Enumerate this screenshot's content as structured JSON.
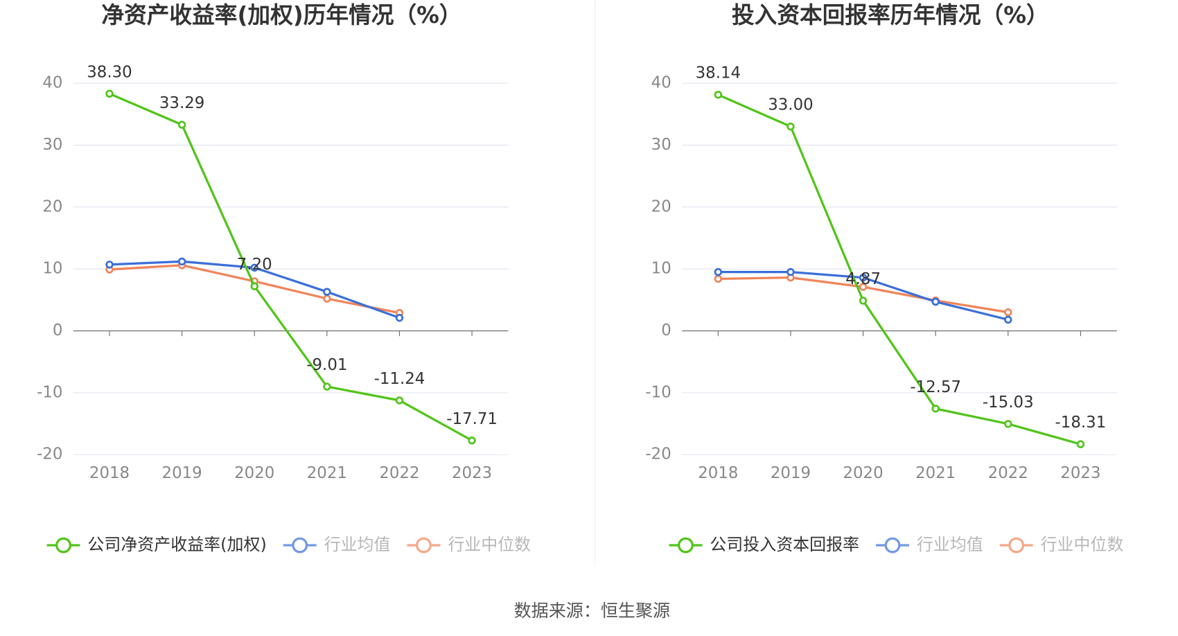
{
  "chart_data": [
    {
      "type": "line",
      "title": "净资产收益率(加权)历年情况（%）",
      "categories": [
        "2018",
        "2019",
        "2020",
        "2021",
        "2022",
        "2023"
      ],
      "series": [
        {
          "name": "公司净资产收益率(加权)",
          "color": "#52c41a",
          "values": [
            38.3,
            33.29,
            7.2,
            -9.01,
            -11.24,
            -17.71
          ],
          "value_labels": [
            "38.30",
            "33.29",
            "7.20",
            "-9.01",
            "-11.24",
            "-17.71"
          ]
        },
        {
          "name": "行业均值",
          "color": "#3a6fd8",
          "values": [
            10.7,
            11.2,
            10.2,
            6.3,
            2.1,
            null
          ]
        },
        {
          "name": "行业中位数",
          "color": "#f0845a",
          "values": [
            9.9,
            10.6,
            8.0,
            5.2,
            2.9,
            null
          ]
        }
      ],
      "ylim": [
        -20,
        40
      ],
      "yticks": [
        -20,
        -10,
        0,
        10,
        20,
        30,
        40
      ],
      "grid": true
    },
    {
      "type": "line",
      "title": "投入资本回报率历年情况（%）",
      "categories": [
        "2018",
        "2019",
        "2020",
        "2021",
        "2022",
        "2023"
      ],
      "series": [
        {
          "name": "公司投入资本回报率",
          "color": "#52c41a",
          "values": [
            38.14,
            33.0,
            4.87,
            -12.57,
            -15.03,
            -18.31
          ],
          "value_labels": [
            "38.14",
            "33.00",
            "4.87",
            "-12.57",
            "-15.03",
            "-18.31"
          ]
        },
        {
          "name": "行业均值",
          "color": "#3a6fd8",
          "values": [
            9.5,
            9.5,
            8.6,
            4.7,
            1.8,
            null
          ]
        },
        {
          "name": "行业中位数",
          "color": "#f0845a",
          "values": [
            8.4,
            8.6,
            7.1,
            4.9,
            3.0,
            null
          ]
        }
      ],
      "ylim": [
        -20,
        40
      ],
      "yticks": [
        -20,
        -10,
        0,
        10,
        20,
        30,
        40
      ],
      "grid": true
    }
  ],
  "source": "数据来源：恒生聚源"
}
